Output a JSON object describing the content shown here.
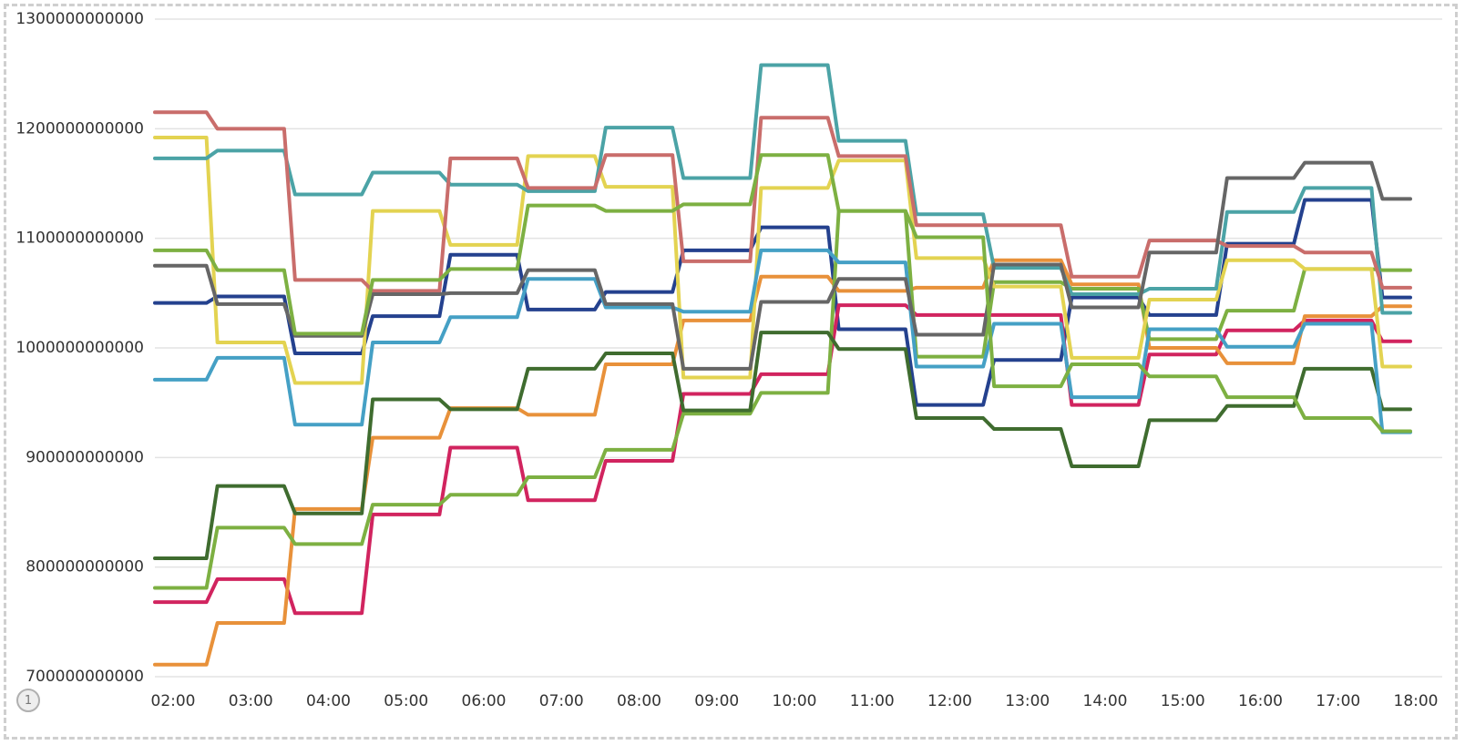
{
  "chart_data": {
    "type": "line",
    "title": "",
    "xlabel": "",
    "ylabel": "",
    "ylim": [
      700000000000,
      1300000000000
    ],
    "yticks": [
      700000000000,
      800000000000,
      900000000000,
      1000000000000,
      1100000000000,
      1200000000000,
      1300000000000
    ],
    "ytick_labels": [
      "700000000000",
      "800000000000",
      "900000000000",
      "1000000000000",
      "1100000000000",
      "1200000000000",
      "1300000000000"
    ],
    "categories": [
      "02:00",
      "03:00",
      "04:00",
      "05:00",
      "06:00",
      "07:00",
      "08:00",
      "09:00",
      "10:00",
      "11:00",
      "12:00",
      "13:00",
      "14:00",
      "15:00",
      "16:00",
      "17:00",
      "18:00"
    ],
    "legend": "none",
    "grid": "horizontal",
    "series": [
      {
        "color": "#24418e",
        "values": [
          1041,
          1047,
          995,
          1029,
          1085,
          1035,
          1051,
          1089,
          1110,
          1017,
          948,
          989,
          1046,
          1030,
          1095,
          1135,
          1046
        ]
      },
      {
        "color": "#d1245f",
        "values": [
          768,
          789,
          758,
          848,
          909,
          861,
          897,
          958,
          976,
          1039,
          1030,
          1030,
          948,
          994,
          1016,
          1025,
          1006
        ]
      },
      {
        "color": "#e8913a",
        "values": [
          711,
          749,
          853,
          918,
          945,
          939,
          985,
          1025,
          1065,
          1052,
          1055,
          1080,
          1058,
          1000,
          986,
          1029,
          1038
        ]
      },
      {
        "color": "#7db042",
        "values": [
          781,
          836,
          821,
          857,
          866,
          882,
          907,
          940,
          959,
          1125,
          992,
          1060,
          1054,
          1008,
          1034,
          1072,
          1071
        ]
      },
      {
        "color": "#3f6c2f",
        "values": [
          808,
          874,
          849,
          953,
          944,
          981,
          995,
          943,
          1014,
          999,
          936,
          926,
          892,
          934,
          947,
          981,
          944
        ]
      },
      {
        "color": "#e3d351",
        "values": [
          1192,
          1005,
          968,
          1125,
          1094,
          1175,
          1147,
          973,
          1146,
          1171,
          1082,
          1056,
          991,
          1044,
          1080,
          1072,
          983
        ]
      },
      {
        "color": "#45a0c5",
        "values": [
          971,
          991,
          930,
          1005,
          1028,
          1063,
          1037,
          1033,
          1089,
          1078,
          983,
          1022,
          955,
          1017,
          1001,
          1022,
          923
        ]
      },
      {
        "color": "#4ba3a6",
        "values": [
          1173,
          1180,
          1140,
          1160,
          1149,
          1143,
          1201,
          1155,
          1258,
          1189,
          1122,
          1073,
          1049,
          1054,
          1124,
          1146,
          1032
        ]
      },
      {
        "color": "#c96d6b",
        "values": [
          1215,
          1200,
          1062,
          1052,
          1173,
          1146,
          1176,
          1079,
          1210,
          1175,
          1112,
          1112,
          1065,
          1098,
          1093,
          1087,
          1055
        ]
      },
      {
        "color": "#666666",
        "values": [
          1075,
          1040,
          1011,
          1049,
          1050,
          1071,
          1040,
          981,
          1042,
          1063,
          1012,
          1076,
          1037,
          1087,
          1155,
          1169,
          1136
        ]
      },
      {
        "color": "#7db042",
        "values": [
          1089,
          1071,
          1013,
          1062,
          1072,
          1130,
          1125,
          1131,
          1176,
          1125,
          1101,
          965,
          985,
          974,
          955,
          936,
          924
        ]
      }
    ]
  }
}
